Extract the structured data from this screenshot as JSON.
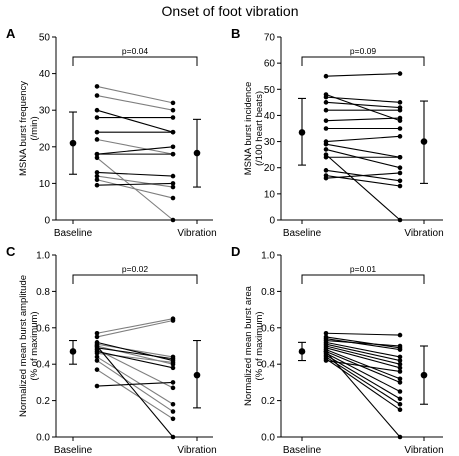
{
  "title": "Onset of foot vibration",
  "colors": {
    "ink": "#000000",
    "grey_line": "#7f7f7f"
  },
  "chart_data": [
    {
      "type": "scatter",
      "panel": "A",
      "ylabel_lines": [
        "MSNA burst frequency",
        "(/min)"
      ],
      "ylim": [
        0,
        50
      ],
      "yticks": [
        0,
        10,
        20,
        30,
        40,
        50
      ],
      "ytick_labels": [
        "0",
        "10",
        "20",
        "30",
        "40",
        "50"
      ],
      "categories": [
        "Baseline",
        "Vibration"
      ],
      "pvalue": "p=0.04",
      "summary": {
        "baseline": {
          "mean": 21.0,
          "low": 12.5,
          "high": 29.5
        },
        "vibration": {
          "mean": 18.3,
          "low": 9.0,
          "high": 27.5
        }
      },
      "pairs": [
        {
          "baseline": 36.5,
          "vibration": 32.0,
          "grey": true
        },
        {
          "baseline": 34.0,
          "vibration": 30.0,
          "grey": true
        },
        {
          "baseline": 30.0,
          "vibration": 24.0,
          "grey": false
        },
        {
          "baseline": 28.0,
          "vibration": 28.0,
          "grey": false
        },
        {
          "baseline": 24.0,
          "vibration": 24.0,
          "grey": false
        },
        {
          "baseline": 22.0,
          "vibration": 18.0,
          "grey": true
        },
        {
          "baseline": 18.0,
          "vibration": 20.0,
          "grey": false
        },
        {
          "baseline": 18.0,
          "vibration": 18.0,
          "grey": false
        },
        {
          "baseline": 13.0,
          "vibration": 12.0,
          "grey": false
        },
        {
          "baseline": 12.0,
          "vibration": 9.0,
          "grey": true
        },
        {
          "baseline": 11.0,
          "vibration": 6.0,
          "grey": true
        },
        {
          "baseline": 9.5,
          "vibration": 10.0,
          "grey": false
        },
        {
          "baseline": 17.0,
          "vibration": 0.0,
          "grey": true
        }
      ]
    },
    {
      "type": "scatter",
      "panel": "B",
      "ylabel_lines": [
        "MSNA burst incidence",
        "(/100 heart beats)"
      ],
      "ylim": [
        0,
        70
      ],
      "yticks": [
        0,
        10,
        20,
        30,
        40,
        50,
        60,
        70
      ],
      "ytick_labels": [
        "0",
        "10",
        "20",
        "30",
        "40",
        "50",
        "60",
        "70"
      ],
      "categories": [
        "Baseline",
        "Vibration"
      ],
      "pvalue": "p=0.09",
      "summary": {
        "baseline": {
          "mean": 33.5,
          "low": 21.0,
          "high": 46.5
        },
        "vibration": {
          "mean": 30.0,
          "low": 14.0,
          "high": 45.5
        }
      },
      "pairs": [
        {
          "baseline": 55.0,
          "vibration": 56.0,
          "grey": false
        },
        {
          "baseline": 48.0,
          "vibration": 38.0,
          "grey": false
        },
        {
          "baseline": 47.0,
          "vibration": 45.0,
          "grey": false
        },
        {
          "baseline": 45.0,
          "vibration": 43.0,
          "grey": false
        },
        {
          "baseline": 42.0,
          "vibration": 42.0,
          "grey": false
        },
        {
          "baseline": 38.0,
          "vibration": 39.0,
          "grey": false
        },
        {
          "baseline": 35.0,
          "vibration": 35.0,
          "grey": false
        },
        {
          "baseline": 30.0,
          "vibration": 32.0,
          "grey": false
        },
        {
          "baseline": 29.0,
          "vibration": 24.0,
          "grey": false
        },
        {
          "baseline": 27.0,
          "vibration": 20.0,
          "grey": false
        },
        {
          "baseline": 24.0,
          "vibration": 24.0,
          "grey": false
        },
        {
          "baseline": 19.0,
          "vibration": 15.0,
          "grey": false
        },
        {
          "baseline": 17.0,
          "vibration": 13.0,
          "grey": false
        },
        {
          "baseline": 16.0,
          "vibration": 18.0,
          "grey": false
        },
        {
          "baseline": 25.0,
          "vibration": 0.0,
          "grey": false
        }
      ]
    },
    {
      "type": "scatter",
      "panel": "C",
      "ylabel_lines": [
        "Normalized mean burst amplitude",
        "(% of maximum)"
      ],
      "ylim": [
        0,
        1.0
      ],
      "yticks": [
        0,
        0.2,
        0.4,
        0.6,
        0.8,
        1.0
      ],
      "ytick_labels": [
        "0.0",
        "0.2",
        "0.4",
        "0.6",
        "0.8",
        "1.0"
      ],
      "categories": [
        "Baseline",
        "Vibration"
      ],
      "pvalue": "p=0.02",
      "summary": {
        "baseline": {
          "mean": 0.47,
          "low": 0.4,
          "high": 0.53
        },
        "vibration": {
          "mean": 0.34,
          "low": 0.16,
          "high": 0.53
        }
      },
      "pairs": [
        {
          "baseline": 0.57,
          "vibration": 0.65,
          "grey": true
        },
        {
          "baseline": 0.55,
          "vibration": 0.64,
          "grey": true
        },
        {
          "baseline": 0.52,
          "vibration": 0.42,
          "grey": false
        },
        {
          "baseline": 0.51,
          "vibration": 0.44,
          "grey": true
        },
        {
          "baseline": 0.5,
          "vibration": 0.4,
          "grey": true
        },
        {
          "baseline": 0.49,
          "vibration": 0.43,
          "grey": false
        },
        {
          "baseline": 0.48,
          "vibration": 0.27,
          "grey": true
        },
        {
          "baseline": 0.47,
          "vibration": 0.38,
          "grey": false
        },
        {
          "baseline": 0.46,
          "vibration": 0.41,
          "grey": true
        },
        {
          "baseline": 0.44,
          "vibration": 0.18,
          "grey": true
        },
        {
          "baseline": 0.42,
          "vibration": 0.14,
          "grey": true
        },
        {
          "baseline": 0.37,
          "vibration": 0.1,
          "grey": true
        },
        {
          "baseline": 0.28,
          "vibration": 0.3,
          "grey": false
        },
        {
          "baseline": 0.5,
          "vibration": 0.0,
          "grey": false
        }
      ]
    },
    {
      "type": "scatter",
      "panel": "D",
      "ylabel_lines": [
        "Normalized mean burst area",
        "(% of maximum)"
      ],
      "ylim": [
        0,
        1.0
      ],
      "yticks": [
        0,
        0.2,
        0.4,
        0.6,
        0.8,
        1.0
      ],
      "ytick_labels": [
        "0.0",
        "0.2",
        "0.4",
        "0.6",
        "0.8",
        "1.0"
      ],
      "categories": [
        "Baseline",
        "Vibration"
      ],
      "pvalue": "p=0.01",
      "summary": {
        "baseline": {
          "mean": 0.47,
          "low": 0.42,
          "high": 0.52
        },
        "vibration": {
          "mean": 0.34,
          "low": 0.18,
          "high": 0.5
        }
      },
      "pairs": [
        {
          "baseline": 0.57,
          "vibration": 0.56,
          "grey": false
        },
        {
          "baseline": 0.55,
          "vibration": 0.49,
          "grey": false
        },
        {
          "baseline": 0.54,
          "vibration": 0.48,
          "grey": false
        },
        {
          "baseline": 0.53,
          "vibration": 0.5,
          "grey": false
        },
        {
          "baseline": 0.52,
          "vibration": 0.44,
          "grey": false
        },
        {
          "baseline": 0.51,
          "vibration": 0.42,
          "grey": false
        },
        {
          "baseline": 0.5,
          "vibration": 0.4,
          "grey": false
        },
        {
          "baseline": 0.49,
          "vibration": 0.38,
          "grey": false
        },
        {
          "baseline": 0.48,
          "vibration": 0.32,
          "grey": false
        },
        {
          "baseline": 0.47,
          "vibration": 0.3,
          "grey": false
        },
        {
          "baseline": 0.46,
          "vibration": 0.25,
          "grey": false
        },
        {
          "baseline": 0.45,
          "vibration": 0.21,
          "grey": false
        },
        {
          "baseline": 0.44,
          "vibration": 0.18,
          "grey": false
        },
        {
          "baseline": 0.43,
          "vibration": 0.15,
          "grey": false
        },
        {
          "baseline": 0.42,
          "vibration": 0.36,
          "grey": false
        },
        {
          "baseline": 0.47,
          "vibration": 0.0,
          "grey": false
        }
      ]
    }
  ]
}
